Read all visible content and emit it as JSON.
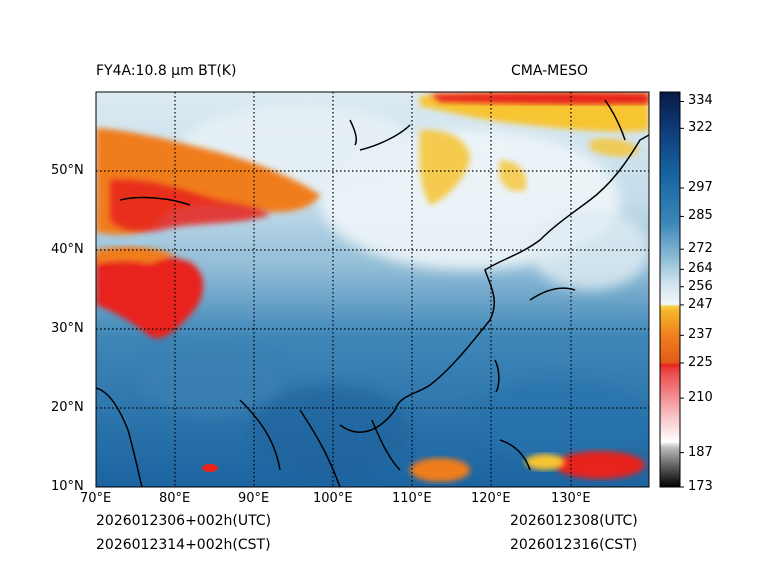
{
  "header": {
    "product_title": "FY4A:10.8 μm BT(K)",
    "model_name": "CMA-MESO"
  },
  "footer": {
    "init_utc": "2026012306+002h(UTC)",
    "init_cst": "2026012314+002h(CST)",
    "valid_utc": "2026012308(UTC)",
    "valid_cst": "2026012316(CST)"
  },
  "axes": {
    "lon_labels": [
      "70°E",
      "80°E",
      "90°E",
      "100°E",
      "110°E",
      "120°E",
      "130°E"
    ],
    "lat_labels": [
      "50°N",
      "40°N",
      "30°N",
      "20°N",
      "10°N"
    ],
    "lon_range": [
      70,
      139.5
    ],
    "lat_range": [
      10,
      60
    ]
  },
  "colorbar": {
    "tick_labels": [
      "334",
      "322",
      "297",
      "285",
      "272",
      "264",
      "256",
      "247",
      "237",
      "225",
      "210",
      "187",
      "173"
    ],
    "tick_values": [
      334,
      322,
      297,
      285,
      272,
      264,
      256,
      247,
      237,
      225,
      210,
      187,
      173
    ]
  },
  "colors": {
    "cold_cloud_red": "#e8241c",
    "cloud_orange": "#f07d1e",
    "cloud_yellow": "#f7c431",
    "clear_sky_light": "#e6f0f5",
    "warm_surface_blue": "#1f6fa5",
    "deep_blue": "#0b2f6b"
  }
}
